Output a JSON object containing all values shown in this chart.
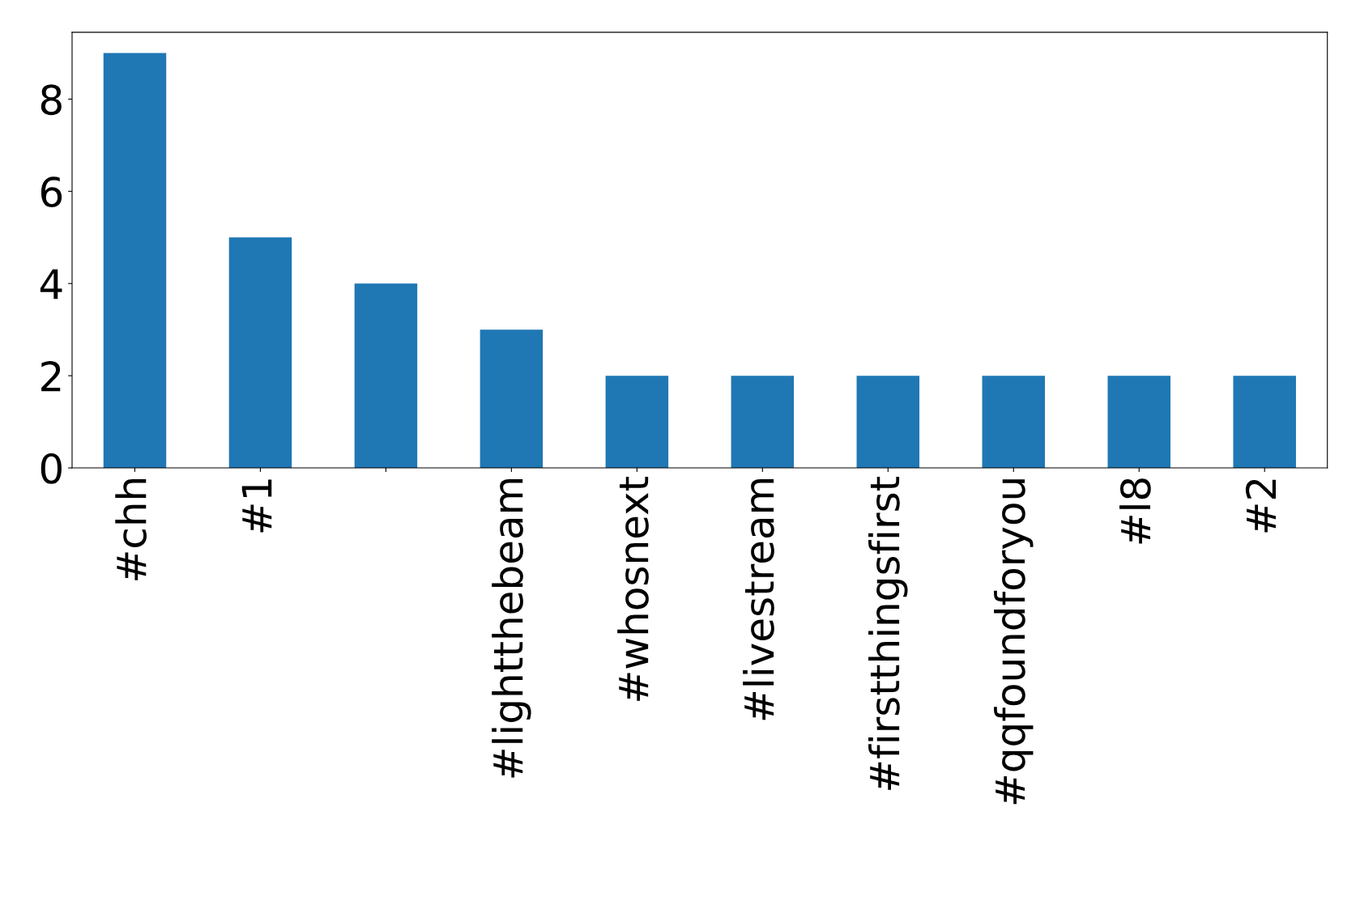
{
  "chart_data": {
    "type": "bar",
    "categories": [
      "#chh",
      "#1",
      null,
      "#lightthebeam",
      "#whosnext",
      "#livestream",
      "#firstthingsfirst",
      "#qqfoundforyou",
      "#l8",
      "#2"
    ],
    "values": [
      9,
      5,
      4,
      3,
      2,
      2,
      2,
      2,
      2,
      2
    ],
    "color": "#1f77b4",
    "ylim": [
      0,
      9.45
    ],
    "yticks": [
      0,
      2,
      4,
      6,
      8
    ],
    "grid": false,
    "legend": false
  }
}
